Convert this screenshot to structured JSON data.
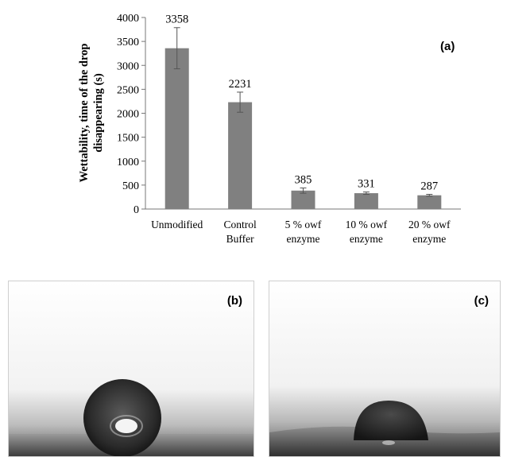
{
  "chart_data": {
    "type": "bar",
    "panel_label": "(a)",
    "categories": [
      [
        "Unmodified"
      ],
      [
        "Control",
        "Buffer"
      ],
      [
        "5 % owf",
        "enzyme"
      ],
      [
        "10 % owf",
        "enzyme"
      ],
      [
        "20 % owf",
        "enzyme"
      ]
    ],
    "values": [
      3358,
      2231,
      385,
      331,
      287
    ],
    "errors": [
      430,
      210,
      55,
      25,
      20
    ],
    "data_labels": [
      "3358",
      "2231",
      "385",
      "331",
      "287"
    ],
    "ylabel": [
      "Wettability, time of the drop",
      "disappearing (s)"
    ],
    "xlabel": "",
    "ylim": [
      0,
      4000
    ],
    "yticks": [
      0,
      500,
      1000,
      1500,
      2000,
      2500,
      3000,
      3500,
      4000
    ],
    "grid": false,
    "bar_color": "#808080"
  },
  "images": [
    {
      "label": "(b)"
    },
    {
      "label": "(c)"
    }
  ]
}
